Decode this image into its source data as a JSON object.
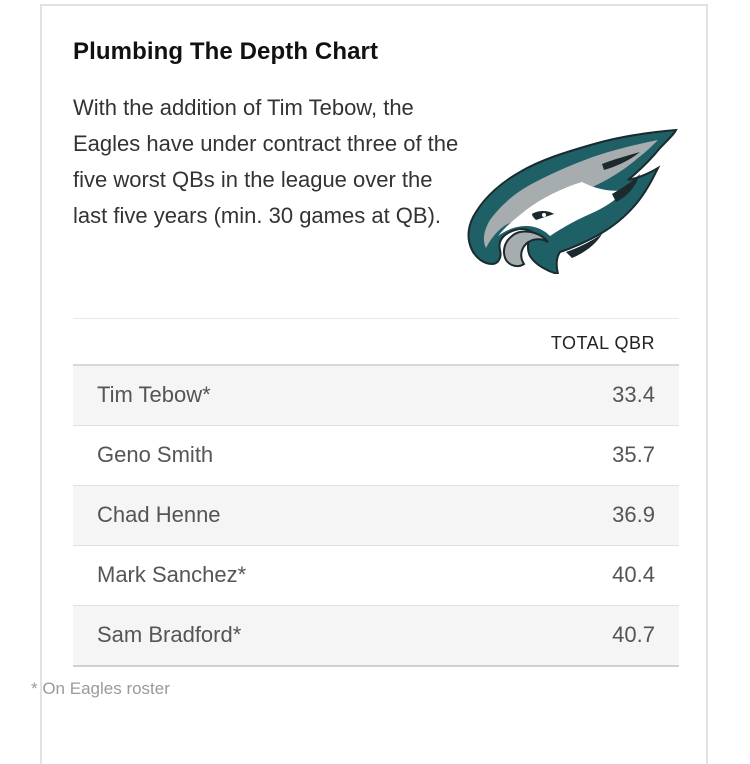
{
  "title": "Plumbing The Depth Chart",
  "description": "With the addition of Tim Tebow, the Eagles have under contract three of the five worst QBs in the league over the last five years (min. 30 games at QB).",
  "logo": {
    "icon": "eagles-logo-icon",
    "colors": {
      "teal": "#1f5f66",
      "dark": "#1b2a2e",
      "silver": "#a7acaf",
      "white": "#ffffff"
    }
  },
  "chart_data": {
    "type": "table",
    "title": "Plumbing The Depth Chart",
    "column_header": "TOTAL QBR",
    "rows": [
      {
        "name": "Tim Tebow*",
        "value": "33.4"
      },
      {
        "name": "Geno Smith",
        "value": "35.7"
      },
      {
        "name": "Chad Henne",
        "value": "36.9"
      },
      {
        "name": "Mark Sanchez*",
        "value": "40.4"
      },
      {
        "name": "Sam Bradford*",
        "value": "40.7"
      }
    ]
  },
  "footnote": "* On Eagles roster"
}
